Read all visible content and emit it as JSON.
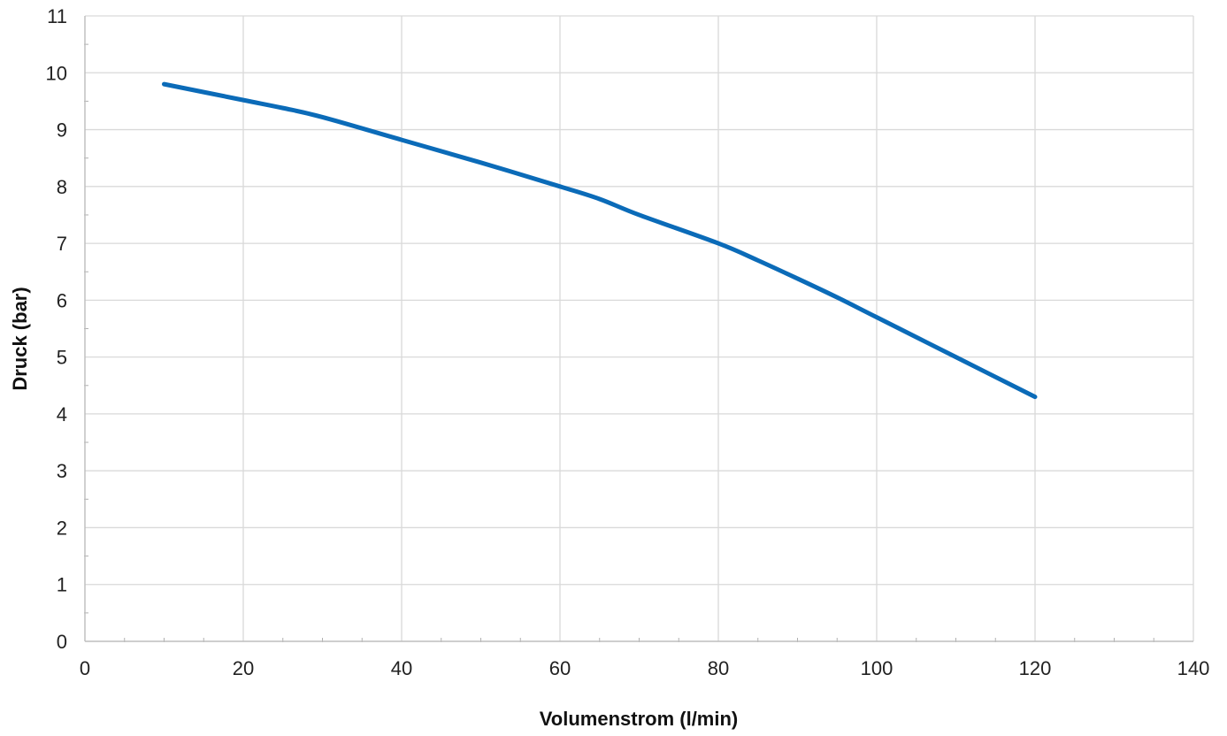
{
  "chart_data": {
    "type": "line",
    "xlabel": "Volumenstrom (l/min)",
    "ylabel": "Druck (bar)",
    "xlim": [
      0,
      140
    ],
    "ylim": [
      0,
      11
    ],
    "x_ticks": [
      0,
      20,
      40,
      60,
      80,
      100,
      120,
      140
    ],
    "y_ticks": [
      0,
      1,
      2,
      3,
      4,
      5,
      6,
      7,
      8,
      9,
      10,
      11
    ],
    "grid": true,
    "legend": "none",
    "series": [
      {
        "color": "#0b6bb8",
        "x": [
          10,
          20,
          25,
          30,
          40,
          50,
          60,
          65,
          70,
          80,
          85,
          90,
          95,
          100,
          110,
          120
        ],
        "y": [
          9.8,
          9.52,
          9.38,
          9.22,
          8.82,
          8.42,
          8.0,
          7.78,
          7.5,
          7.0,
          6.7,
          6.38,
          6.05,
          5.7,
          5.0,
          4.3
        ]
      }
    ]
  }
}
